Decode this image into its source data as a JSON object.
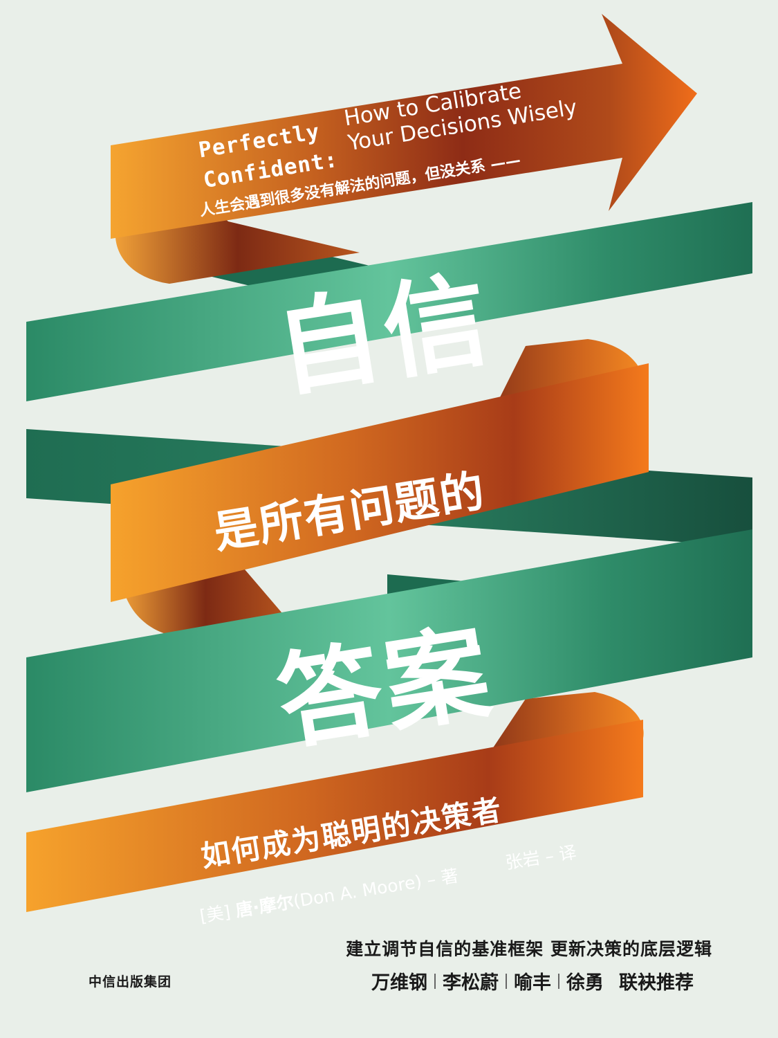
{
  "cover": {
    "english_title_line1": "Perfectly",
    "english_title_line2": "Confident:",
    "english_subtitle_line1": "How to Calibrate",
    "english_subtitle_line2": "Your Decisions Wisely",
    "tagline_top": "人生会遇到很多没有解法的问题，但没关系 ——",
    "main_title_line1": "自信",
    "main_title_line2": "是所有问题的",
    "main_title_line3": "答案",
    "subtitle": "如何成为聪明的决策者",
    "author_prefix": "[美]",
    "author_name": "唐·摩尔",
    "author_en": "(Don A. Moore)",
    "author_role": "– 著",
    "translator": "张岩 – 译",
    "tagline_bottom": "建立调节自信的基准框架   更新决策的底层逻辑",
    "recommenders": [
      "万维钢",
      "李松蔚",
      "喻丰",
      "徐勇"
    ],
    "recommend_label": "联袂推荐",
    "publisher": "中信出版集团"
  },
  "colors": {
    "background": "#e9efe9",
    "ribbon_orange": "#ee7d1e",
    "ribbon_rust": "#8a2a14",
    "ribbon_green": "#2e8a67",
    "ribbon_green_light": "#62c39b",
    "text_dark": "#1a1a1a"
  }
}
